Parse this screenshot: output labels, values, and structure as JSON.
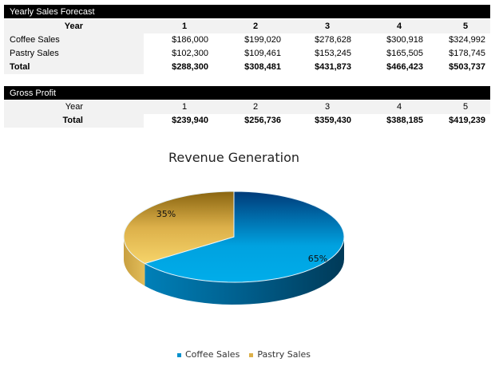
{
  "sales": {
    "title": "Yearly Sales Forecast",
    "year_label": "Year",
    "years": [
      "1",
      "2",
      "3",
      "4",
      "5"
    ],
    "rows": [
      {
        "label": "Coffee Sales",
        "values": [
          "$186,000",
          "$199,020",
          "$278,628",
          "$300,918",
          "$324,992"
        ]
      },
      {
        "label": "Pastry Sales",
        "values": [
          "$102,300",
          "$109,461",
          "$153,245",
          "$165,505",
          "$178,745"
        ]
      },
      {
        "label": "Total",
        "values": [
          "$288,300",
          "$308,481",
          "$431,873",
          "$466,423",
          "$503,737"
        ]
      }
    ]
  },
  "profit": {
    "title": "Gross Profit",
    "year_label": "Year",
    "years": [
      "1",
      "2",
      "3",
      "4",
      "5"
    ],
    "rows": [
      {
        "label": "Total",
        "values": [
          "$239,940",
          "$256,736",
          "$359,430",
          "$388,185",
          "$419,239"
        ]
      }
    ]
  },
  "chart_data": {
    "type": "pie",
    "title": "Revenue Generation",
    "categories": [
      "Coffee Sales",
      "Pastry Sales"
    ],
    "values": [
      65,
      35
    ],
    "labels": [
      "65%",
      "35%"
    ],
    "colors": [
      "#00a9e6",
      "#f2cc5e"
    ],
    "style": "3d",
    "legend": "bottom"
  }
}
